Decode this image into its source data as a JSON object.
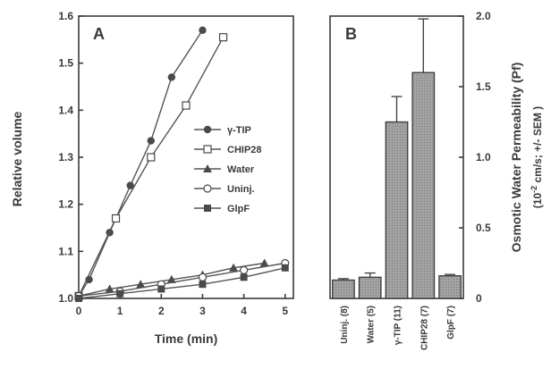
{
  "chart_data": [
    {
      "type": "line",
      "panel_label": "A",
      "xlabel": "Time (min)",
      "ylabel": "Relative volume",
      "xlim": [
        0,
        5.2
      ],
      "ylim": [
        1.0,
        1.6
      ],
      "x_ticks": [
        "0",
        "1",
        "2",
        "3",
        "4",
        "5"
      ],
      "y_ticks": [
        "1.0",
        "1.1",
        "1.2",
        "1.3",
        "1.4",
        "1.5",
        "1.6"
      ],
      "legend_position": "right",
      "series": [
        {
          "name": "γ-TIP",
          "marker": "circle-filled",
          "x": [
            0,
            0.25,
            0.75,
            1.25,
            1.75,
            2.25,
            3.0
          ],
          "y": [
            1.005,
            1.04,
            1.14,
            1.24,
            1.335,
            1.47,
            1.57
          ]
        },
        {
          "name": "CHIP28",
          "marker": "square-open",
          "x": [
            0,
            0.9,
            1.75,
            2.6,
            3.5
          ],
          "y": [
            1.005,
            1.17,
            1.3,
            1.41,
            1.555
          ]
        },
        {
          "name": "Water",
          "marker": "triangle-filled",
          "x": [
            0,
            0.75,
            1.5,
            2.25,
            3.0,
            3.75,
            4.5
          ],
          "y": [
            1.005,
            1.02,
            1.03,
            1.04,
            1.05,
            1.065,
            1.075
          ]
        },
        {
          "name": "Uninj.",
          "marker": "circle-open",
          "x": [
            0,
            1.0,
            2.0,
            3.0,
            4.0,
            5.0
          ],
          "y": [
            1.005,
            1.015,
            1.03,
            1.045,
            1.06,
            1.075
          ]
        },
        {
          "name": "GlpF",
          "marker": "square-filled",
          "x": [
            0,
            1.0,
            2.0,
            3.0,
            4.0,
            5.0
          ],
          "y": [
            1.0,
            1.01,
            1.02,
            1.03,
            1.045,
            1.065
          ]
        }
      ]
    },
    {
      "type": "bar",
      "panel_label": "B",
      "ylabel": "Osmotic Water Permeability (Pf)",
      "ylabel2_prefix": "(10",
      "ylabel2_exp": "-2",
      "ylabel2_suffix": " cm/s; +/- SEM )",
      "ylim": [
        0,
        2.0
      ],
      "y_ticks": [
        "0",
        "0.5",
        "1.0",
        "1.5",
        "2.0"
      ],
      "categories": [
        "Uninj. (8)",
        "Water (5)",
        "γ-TIP (11)",
        "CHIP28 (7)",
        "GlpF (7)"
      ],
      "values": [
        0.13,
        0.15,
        1.25,
        1.6,
        0.16
      ],
      "errors": [
        0.01,
        0.03,
        0.18,
        0.38,
        0.01
      ]
    }
  ]
}
